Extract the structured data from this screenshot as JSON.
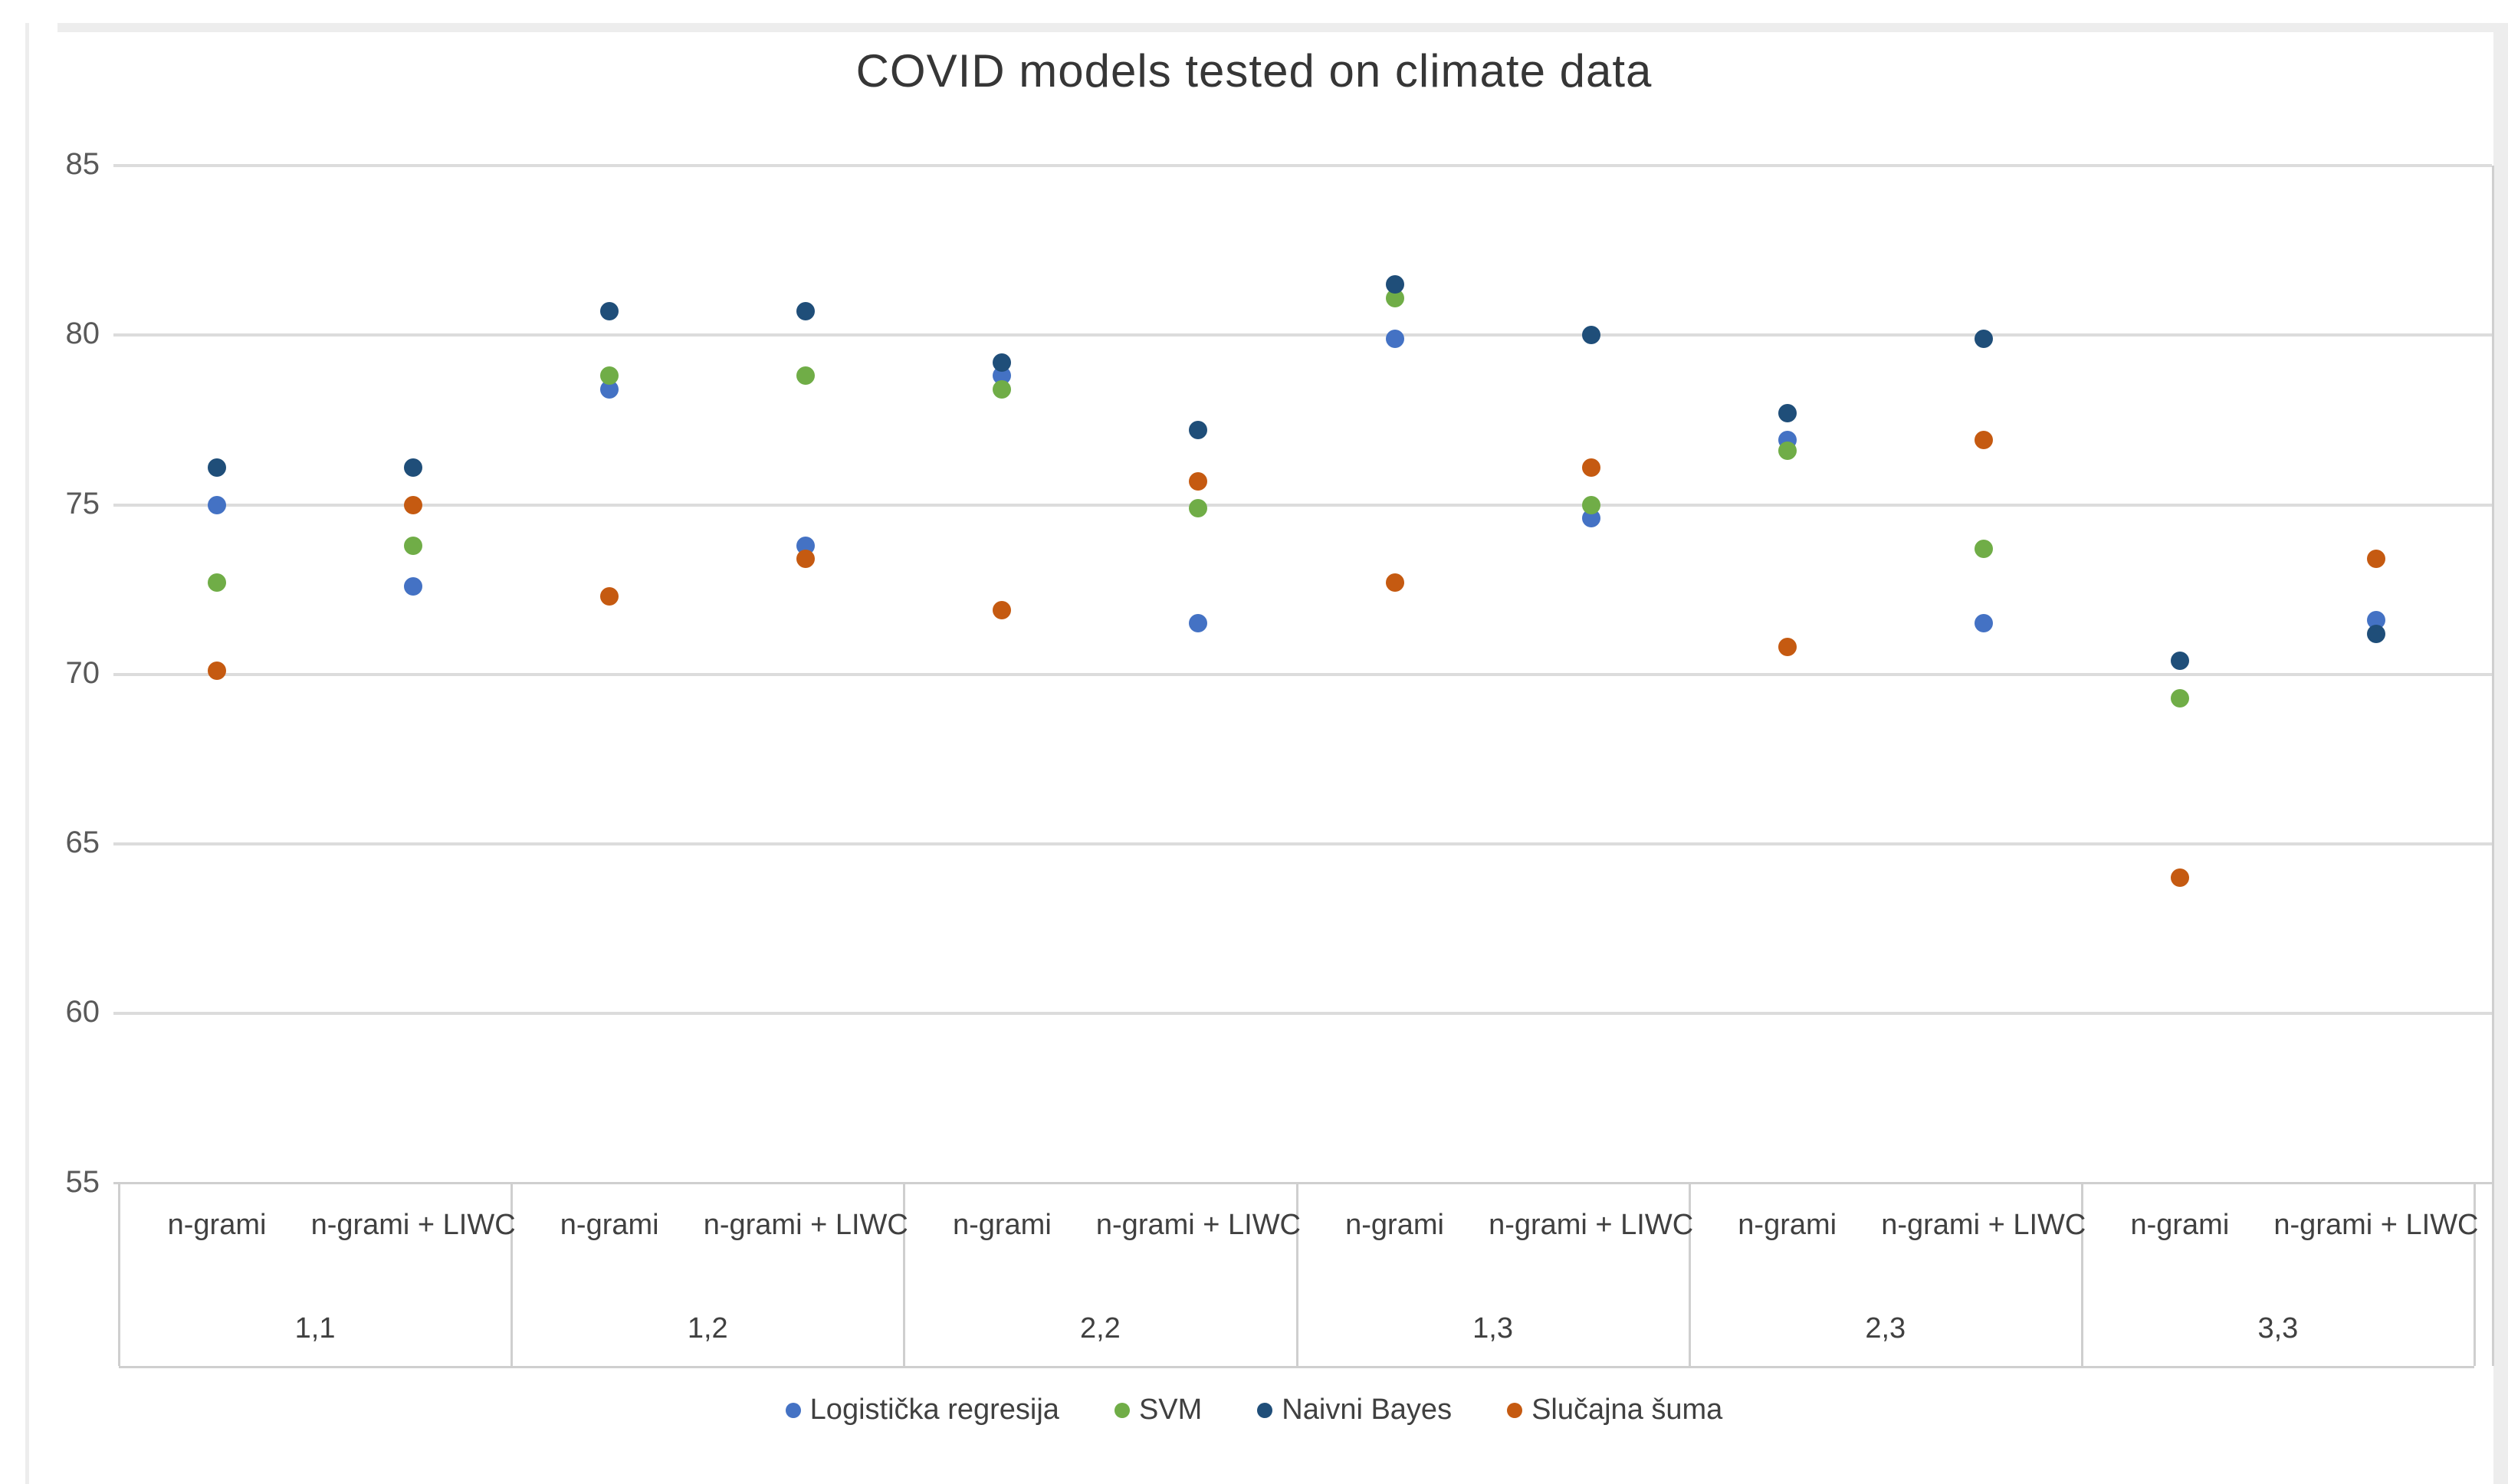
{
  "chart_data": {
    "type": "scatter",
    "title": "COVID models tested on climate data",
    "xlabel": "",
    "ylabel": "",
    "ylim": [
      55,
      85
    ],
    "yticks": [
      55,
      60,
      65,
      70,
      75,
      80,
      85
    ],
    "grid": true,
    "legend_position": "bottom",
    "groups": [
      "1,1",
      "1,2",
      "2,2",
      "1,3",
      "2,3",
      "3,3"
    ],
    "subcategories": [
      "n-grami",
      "n-grami + LIWC"
    ],
    "series": [
      {
        "name": "Logistička regresija",
        "color": "#4472C4",
        "values": [
          75.0,
          72.6,
          78.4,
          73.8,
          78.8,
          71.5,
          79.9,
          74.6,
          76.9,
          71.5,
          null,
          71.6
        ]
      },
      {
        "name": "SVM",
        "color": "#70AD47",
        "values": [
          72.7,
          73.8,
          78.8,
          78.8,
          78.4,
          74.9,
          81.1,
          75.0,
          76.6,
          73.7,
          69.3,
          null
        ]
      },
      {
        "name": "Naivni Bayes",
        "color": "#1F4E79",
        "values": [
          76.1,
          76.1,
          80.7,
          80.7,
          79.2,
          77.2,
          81.5,
          80.0,
          77.7,
          79.9,
          70.4,
          71.2
        ]
      },
      {
        "name": "Slučajna šuma",
        "color": "#C55A11",
        "values": [
          70.1,
          75.0,
          72.3,
          73.4,
          71.9,
          75.7,
          72.7,
          76.1,
          70.8,
          76.9,
          64.0,
          73.4
        ]
      }
    ]
  }
}
